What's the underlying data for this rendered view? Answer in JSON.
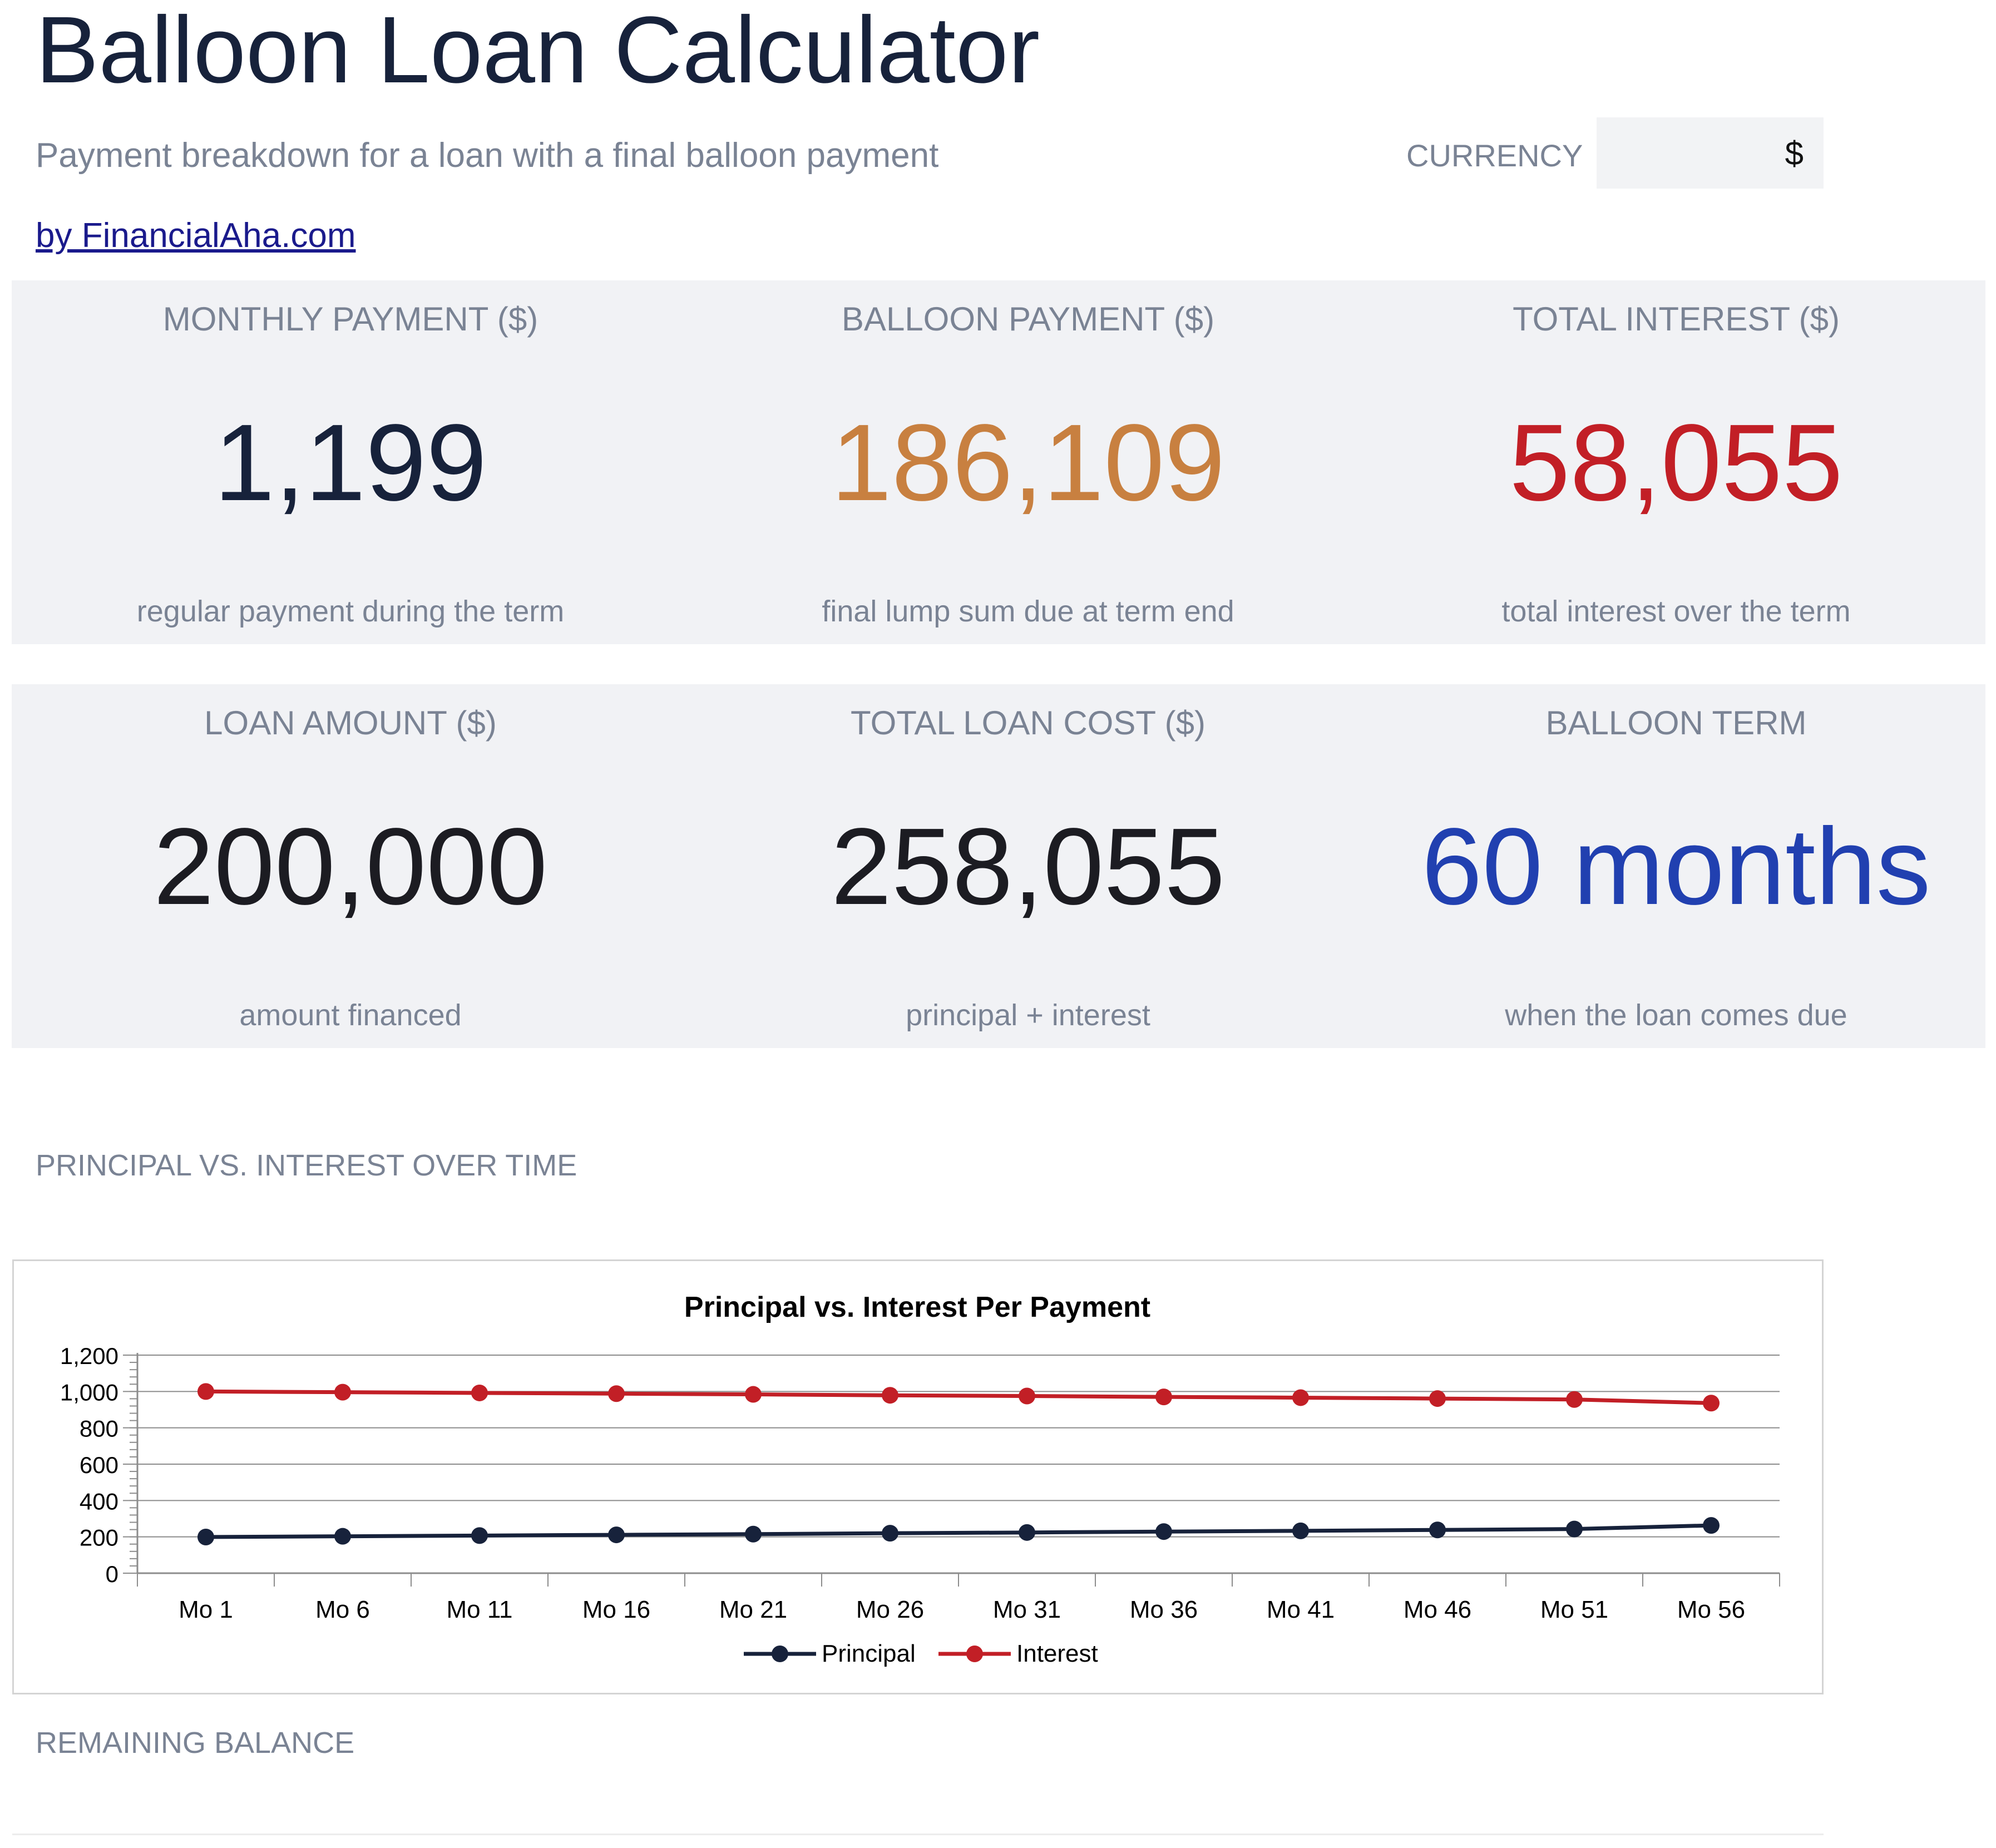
{
  "header": {
    "title": "Balloon Loan Calculator",
    "subtitle": "Payment breakdown for a loan with a final balloon payment",
    "link": "by FinancialAha.com",
    "currency_label": "CURRENCY",
    "currency_value": "$"
  },
  "summary_top": [
    {
      "label": "MONTHLY PAYMENT ($)",
      "value": "1,199",
      "note": "regular payment during the term",
      "color": "#17223b"
    },
    {
      "label": "BALLOON PAYMENT ($)",
      "value": "186,109",
      "note": "final lump sum due at term end",
      "color": "#c88040"
    },
    {
      "label": "TOTAL INTEREST ($)",
      "value": "58,055",
      "note": "total interest over the term",
      "color": "#c21f26"
    }
  ],
  "summary_bottom": [
    {
      "label": "LOAN AMOUNT ($)",
      "value": "200,000",
      "note": "amount financed",
      "color": "#1c1c22"
    },
    {
      "label": "TOTAL LOAN COST ($)",
      "value": "258,055",
      "note": "principal + interest",
      "color": "#1c1c22"
    },
    {
      "label": "BALLOON TERM",
      "value": "60 months",
      "note": "when the loan comes due",
      "color": "#2140b0"
    }
  ],
  "sections": {
    "chart_heading": "PRINCIPAL VS. INTEREST OVER TIME",
    "balance_heading": "REMAINING BALANCE"
  },
  "chart_data": {
    "type": "line",
    "title": "Principal vs. Interest Per Payment",
    "categories": [
      "Mo 1",
      "Mo 6",
      "Mo 11",
      "Mo 16",
      "Mo 21",
      "Mo 26",
      "Mo 31",
      "Mo 36",
      "Mo 41",
      "Mo 46",
      "Mo 51",
      "Mo 56"
    ],
    "series": [
      {
        "name": "Principal",
        "color": "#17223b",
        "values": [
          199,
          203,
          207,
          211,
          215,
          220,
          224,
          229,
          233,
          238,
          243,
          263
        ]
      },
      {
        "name": "Interest",
        "color": "#c21f26",
        "values": [
          1000,
          996,
          992,
          988,
          984,
          979,
          975,
          970,
          966,
          961,
          956,
          936
        ]
      }
    ],
    "ylim": [
      0,
      1200
    ],
    "yticks": [
      "0",
      "200",
      "400",
      "600",
      "800",
      "1,000",
      "1,200"
    ],
    "ytick_values": [
      0,
      200,
      400,
      600,
      800,
      1000,
      1200
    ],
    "grid": true,
    "legend": "bottom"
  }
}
